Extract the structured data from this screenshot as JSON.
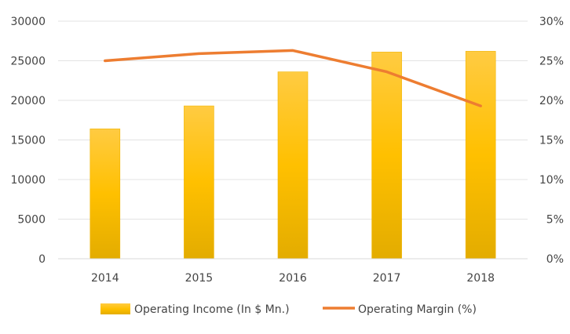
{
  "chart_data": {
    "type": "bar",
    "categories": [
      "2014",
      "2015",
      "2016",
      "2017",
      "2018"
    ],
    "series": [
      {
        "name": "Operating Income (In $ Mn.)",
        "type": "bar",
        "axis": "left",
        "values": [
          16400,
          19300,
          23600,
          26100,
          26200
        ],
        "color": "#FFC000"
      },
      {
        "name": "Operating Margin (%)",
        "type": "line",
        "axis": "right",
        "values": [
          25.0,
          25.9,
          26.3,
          23.6,
          19.3
        ],
        "color": "#ED7D31"
      }
    ],
    "y_left": {
      "lim": [
        0,
        30000
      ],
      "ticks": [
        0,
        5000,
        10000,
        15000,
        20000,
        25000,
        30000
      ],
      "tick_labels": [
        "0",
        "5000",
        "10000",
        "15000",
        "20000",
        "25000",
        "30000"
      ]
    },
    "y_right": {
      "lim": [
        0,
        30
      ],
      "ticks": [
        0,
        5,
        10,
        15,
        20,
        25,
        30
      ],
      "tick_labels": [
        "0%",
        "5%",
        "10%",
        "15%",
        "20%",
        "25%",
        "30%"
      ]
    },
    "grid": true,
    "legend_position": "bottom"
  }
}
